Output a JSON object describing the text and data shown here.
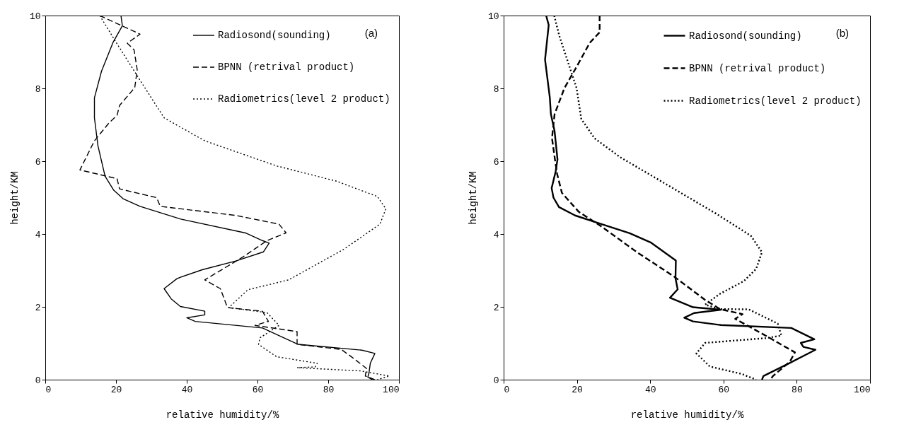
{
  "chart_data": [
    {
      "type": "line",
      "xlabel": "relative humidity/%",
      "ylabel": "height/KM",
      "xlim": [
        0,
        100
      ],
      "ylim": [
        0,
        10
      ],
      "xticks": [
        0,
        20,
        40,
        60,
        80,
        100
      ],
      "yticks": [
        0,
        2,
        4,
        6,
        8,
        10
      ],
      "grid": false,
      "legend": "top right",
      "annotations": [
        "(a)"
      ],
      "series": [
        {
          "name": "Radiosond(sounding)",
          "color": "#000000",
          "line_style": "solid",
          "x": [
            21.4,
            21.8,
            19.2,
            15.9,
            13.9,
            13.9,
            14.9,
            16.9,
            19.3,
            22.0,
            26.8,
            38.3,
            56.6,
            61.4,
            63.3,
            61.7,
            53.9,
            44.4,
            37.3,
            33.6,
            35.6,
            38.2,
            45.1,
            45.1,
            40.0,
            42.4,
            61.4,
            71.5,
            89.5,
            93.2,
            91.9,
            91.5,
            91.2,
            92.5
          ],
          "values": [
            10,
            9.72,
            9.27,
            8.47,
            7.74,
            7.19,
            6.42,
            5.59,
            5.21,
            4.97,
            4.76,
            4.41,
            4.03,
            3.82,
            3.75,
            3.51,
            3.26,
            3.02,
            2.78,
            2.5,
            2.22,
            2.01,
            1.88,
            1.78,
            1.7,
            1.6,
            1.42,
            0.97,
            0.81,
            0.72,
            0.45,
            0.17,
            0.07,
            0
          ]
        },
        {
          "name": "BPNN (retrival product)",
          "color": "#000000",
          "line_style": "dashed",
          "x": [
            15.4,
            26.8,
            23.2,
            25.1,
            26.0,
            25.3,
            21.0,
            20.3,
            18.0,
            13.9,
            9.8,
            20.3,
            21.0,
            31.5,
            32.5,
            53.9,
            66.1,
            68.1,
            62.7,
            55.9,
            45.1,
            49.5,
            51.5,
            61.4,
            63.1,
            59.3,
            71.2,
            71.2,
            83.7,
            87.1,
            90.8,
            90.5,
            93.2
          ],
          "values": [
            10,
            9.49,
            9.24,
            9.06,
            8.51,
            8.02,
            7.53,
            7.26,
            7.05,
            6.56,
            5.76,
            5.52,
            5.24,
            5.0,
            4.76,
            4.51,
            4.27,
            4.03,
            3.82,
            3.37,
            2.74,
            2.5,
            1.98,
            1.88,
            1.6,
            1.49,
            1.32,
            0.97,
            0.83,
            0.59,
            0.31,
            0.1,
            0
          ]
        },
        {
          "name": "Radiometrics(level 2 product)",
          "color": "#000000",
          "line_style": "dotted",
          "x": [
            15.4,
            20.0,
            26.1,
            33.6,
            45.1,
            65.4,
            82.4,
            93.9,
            96.3,
            94.6,
            84.4,
            68.8,
            57.3,
            51.9,
            62.7,
            66.1,
            60.7,
            60.3,
            65.4,
            76.9,
            76.3,
            71.2,
            89.2,
            97.3,
            93.9
          ],
          "values": [
            10,
            9.27,
            8.33,
            7.19,
            6.56,
            5.87,
            5.45,
            5.03,
            4.69,
            4.27,
            3.58,
            2.74,
            2.47,
            1.98,
            1.84,
            1.49,
            1.15,
            0.97,
            0.63,
            0.45,
            0.35,
            0.33,
            0.24,
            0.1,
            0
          ]
        }
      ]
    },
    {
      "type": "line",
      "xlabel": "relative humidity/%",
      "ylabel": "height/KM",
      "xlim": [
        0,
        100
      ],
      "ylim": [
        0,
        10
      ],
      "xticks": [
        0,
        20,
        40,
        60,
        80,
        100
      ],
      "yticks": [
        0,
        2,
        4,
        6,
        8,
        10
      ],
      "grid": false,
      "legend": "top right",
      "annotations": [
        "(b)"
      ],
      "series": [
        {
          "name": "Radiosond(sounding)",
          "color": "#000000",
          "line_style": "solid",
          "x": [
            11.6,
            12.3,
            11.3,
            12.6,
            12.9,
            13.9,
            14.7,
            14.2,
            13.1,
            13.6,
            15.1,
            19.5,
            26.5,
            34.4,
            40.1,
            47.0,
            46.9,
            47.5,
            45.4,
            51.7,
            59.3,
            52.0,
            49.3,
            51.7,
            59.3,
            78.5,
            84.8,
            81.1,
            81.8,
            85.1,
            78.1,
            70.9,
            70.5
          ],
          "values": [
            10,
            9.74,
            8.79,
            7.75,
            7.29,
            6.83,
            6.05,
            5.72,
            5.26,
            5.0,
            4.74,
            4.51,
            4.28,
            4.02,
            3.77,
            3.27,
            2.78,
            2.48,
            2.25,
            1.99,
            1.92,
            1.83,
            1.7,
            1.6,
            1.5,
            1.42,
            1.11,
            1.01,
            0.9,
            0.82,
            0.46,
            0.1,
            0
          ]
        },
        {
          "name": "BPNN (retrival product)",
          "color": "#000000",
          "line_style": "dashed",
          "x": [
            26.2,
            26.2,
            23.5,
            19.9,
            16.6,
            13.9,
            13.2,
            14.0,
            14.6,
            15.9,
            20.5,
            26.5,
            36.4,
            46.4,
            55.0,
            59.0,
            65.2,
            63.2,
            71.5,
            79.5,
            78.1,
            73.5,
            72.8
          ],
          "values": [
            10,
            9.54,
            9.25,
            8.59,
            8.01,
            7.29,
            6.63,
            6.05,
            5.65,
            5.13,
            4.61,
            4.22,
            3.5,
            2.84,
            2.19,
            1.94,
            1.8,
            1.67,
            1.21,
            0.75,
            0.49,
            0.1,
            0
          ]
        },
        {
          "name": "Radiometrics(level 2 product)",
          "color": "#000000",
          "line_style": "dotted",
          "x": [
            13.8,
            15.2,
            19.9,
            21.2,
            24.8,
            31.8,
            45.0,
            58.3,
            67.5,
            70.5,
            68.9,
            65.6,
            58.9,
            55.0,
            59.0,
            66.9,
            74.8,
            75.8,
            71.5,
            55.0,
            52.6,
            56.3,
            64.9,
            68.9
          ],
          "values": [
            10,
            9.44,
            8.01,
            7.16,
            6.63,
            6.11,
            5.33,
            4.54,
            3.95,
            3.5,
            3.04,
            2.71,
            2.35,
            2.06,
            1.94,
            1.93,
            1.54,
            1.21,
            1.14,
            1.01,
            0.72,
            0.36,
            0.16,
            0
          ]
        }
      ]
    }
  ]
}
